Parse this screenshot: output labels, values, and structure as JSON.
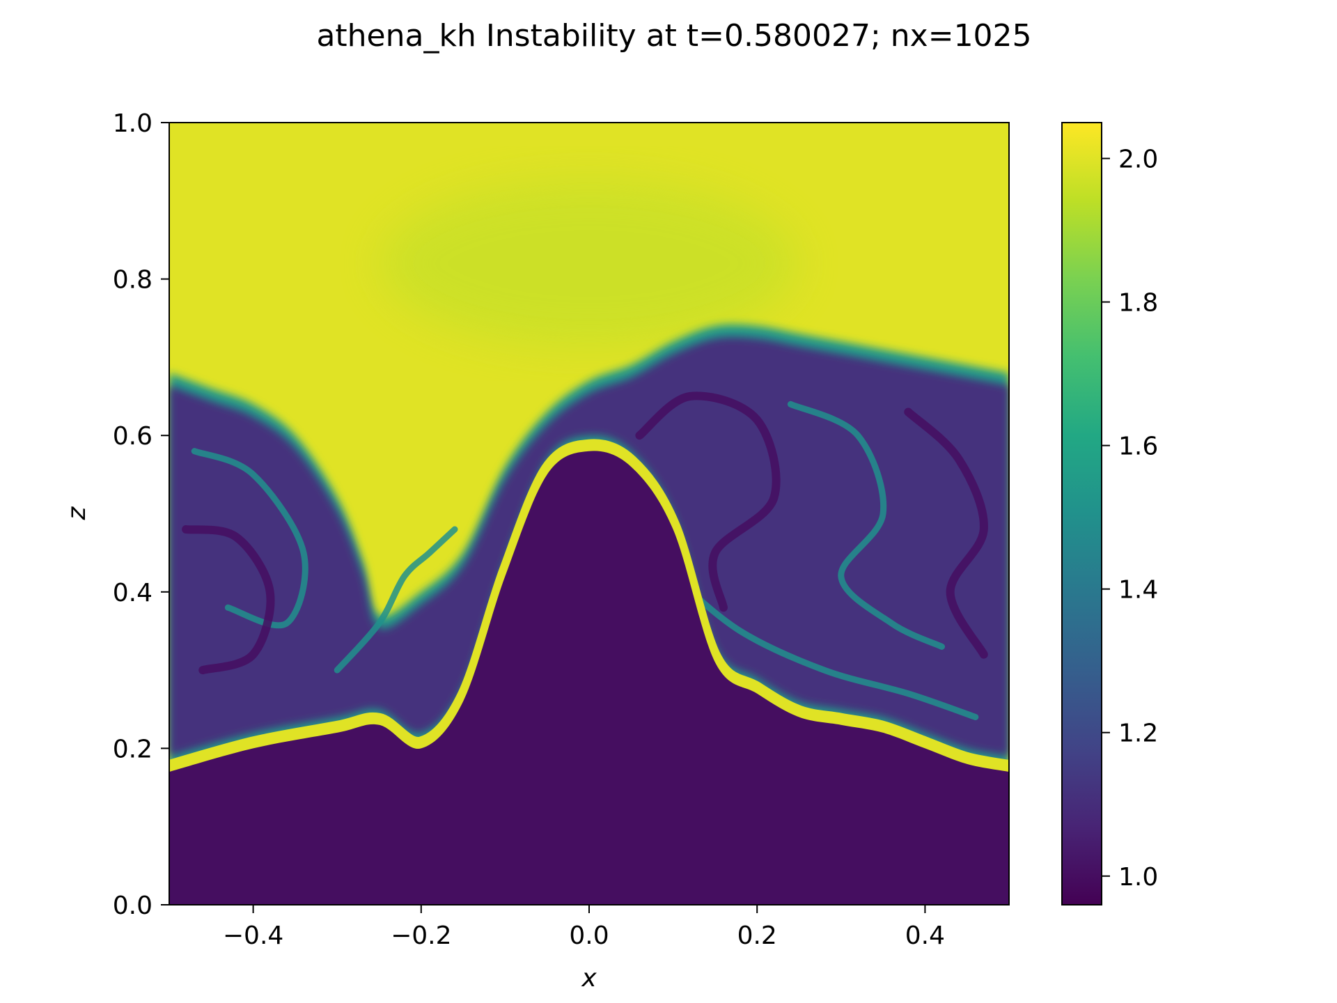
{
  "chart_data": {
    "type": "heatmap",
    "title": "athena_kh Instability at t=0.580027; nx=1025",
    "xlabel": "x",
    "ylabel": "z",
    "xlim": [
      -0.5,
      0.5
    ],
    "ylim": [
      0.0,
      1.0
    ],
    "x_ticks": [
      -0.4,
      -0.2,
      0.0,
      0.2,
      0.4
    ],
    "x_tick_labels": [
      "−0.4",
      "−0.2",
      "0.0",
      "0.2",
      "0.4"
    ],
    "y_ticks": [
      0.0,
      0.2,
      0.4,
      0.6,
      0.8,
      1.0
    ],
    "y_tick_labels": [
      "0.0",
      "0.2",
      "0.4",
      "0.6",
      "0.8",
      "1.0"
    ],
    "colorbar": {
      "colormap": "viridis",
      "range": [
        0.96,
        2.05
      ],
      "ticks": [
        1.0,
        1.2,
        1.4,
        1.6,
        1.8,
        2.0
      ],
      "tick_labels": [
        "1.0",
        "1.2",
        "1.4",
        "1.6",
        "1.8",
        "2.0"
      ]
    },
    "field": {
      "low_value": 1.0,
      "high_value": 2.0,
      "high_value_region": "upper layer (z above interface)",
      "low_value_region": "lower layer (z below interface)",
      "mixing_value_range": [
        1.1,
        1.6
      ],
      "interface_z_at_x": {
        "x": [
          -0.5,
          -0.4,
          -0.3,
          -0.25,
          -0.2,
          -0.15,
          -0.1,
          -0.05,
          0.0,
          0.05,
          0.1,
          0.15,
          0.2,
          0.25,
          0.3,
          0.35,
          0.4,
          0.45,
          0.5
        ],
        "z": [
          0.17,
          0.2,
          0.22,
          0.23,
          0.2,
          0.26,
          0.42,
          0.55,
          0.58,
          0.56,
          0.48,
          0.31,
          0.27,
          0.24,
          0.23,
          0.22,
          0.2,
          0.18,
          0.17
        ]
      },
      "billow_top_z_at_x": {
        "x": [
          -0.5,
          -0.45,
          -0.4,
          -0.35,
          -0.3,
          -0.27,
          -0.25,
          -0.2,
          -0.15,
          -0.1,
          -0.05,
          0.0,
          0.05,
          0.1,
          0.15,
          0.2,
          0.25,
          0.3,
          0.35,
          0.4,
          0.45,
          0.5
        ],
        "z": [
          0.68,
          0.66,
          0.64,
          0.6,
          0.52,
          0.44,
          0.37,
          0.4,
          0.45,
          0.56,
          0.63,
          0.67,
          0.69,
          0.72,
          0.74,
          0.74,
          0.73,
          0.72,
          0.71,
          0.7,
          0.69,
          0.68
        ]
      }
    }
  }
}
